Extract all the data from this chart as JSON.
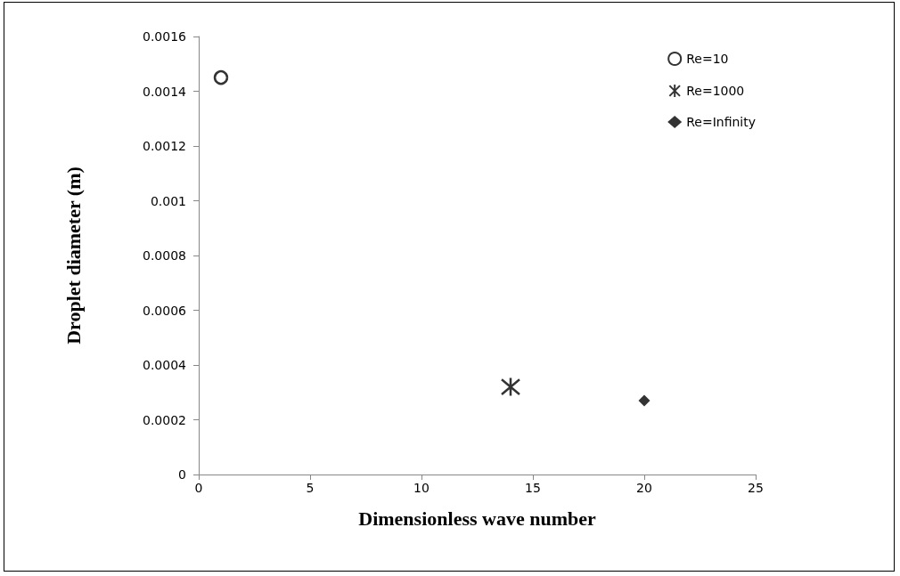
{
  "chart_data": {
    "type": "scatter",
    "xlabel": "Dimensionless wave number",
    "ylabel": "Droplet diameter (m)",
    "xlim": [
      0,
      25
    ],
    "xticks": [
      0,
      5,
      10,
      15,
      20,
      25
    ],
    "ylim": [
      0,
      0.0016
    ],
    "yticks": [
      0,
      0.0002,
      0.0004,
      0.0006,
      0.0008,
      0.001,
      0.0012,
      0.0014,
      0.0016
    ],
    "grid": false,
    "legend": "top right",
    "series": [
      {
        "name": "Re=10",
        "color": "#000000",
        "marker": "circle",
        "x": [
          1
        ],
        "values": [
          0.00145
        ]
      },
      {
        "name": "Re=1000",
        "color": "#000000",
        "marker": "cross",
        "x": [
          14
        ],
        "values": [
          0.00032
        ]
      },
      {
        "name": "Re=Infinity",
        "color": "#000000",
        "marker": "diamond",
        "x": [
          20
        ],
        "values": [
          0.00027
        ]
      }
    ]
  }
}
